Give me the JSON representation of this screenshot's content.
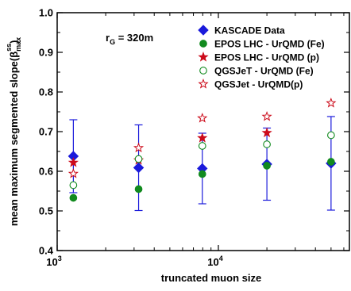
{
  "chart_data": {
    "type": "scatter",
    "title": "",
    "xlabel": "truncated muon size",
    "ylabel": "mean maximum segmented slope(β",
    "ylabel_sub": "max",
    "ylabel_sup": "ss",
    "ylabel_close": ")",
    "xscale": "log",
    "xlim": [
      1000,
      65000
    ],
    "ylim": [
      0.4,
      1.0
    ],
    "x_ticks": [
      {
        "value": 1000,
        "base": "10",
        "exp": "3"
      },
      {
        "value": 10000,
        "base": "10",
        "exp": "4"
      }
    ],
    "y_ticks": [
      {
        "value": 0.4,
        "label": "0.4"
      },
      {
        "value": 0.5,
        "label": "0.5"
      },
      {
        "value": 0.6,
        "label": "0.6"
      },
      {
        "value": 0.7,
        "label": "0.7"
      },
      {
        "value": 0.8,
        "label": "0.8"
      },
      {
        "value": 0.9,
        "label": "0.9"
      },
      {
        "value": 1.0,
        "label": "1.0"
      }
    ],
    "annotation": {
      "main": "r",
      "sub": "G",
      "rest": " = 320m"
    },
    "legend_position": "top-right",
    "series": [
      {
        "name": "KASCADE Data",
        "marker": "diamond",
        "color": "#1a1adb",
        "filled": true,
        "points": [
          {
            "x": 1260,
            "y": 0.638,
            "err": 0.092
          },
          {
            "x": 3200,
            "y": 0.609,
            "err": 0.108
          },
          {
            "x": 7950,
            "y": 0.607,
            "err": 0.089
          },
          {
            "x": 20000,
            "y": 0.618,
            "err": 0.091
          },
          {
            "x": 50000,
            "y": 0.62,
            "err": 0.118
          }
        ]
      },
      {
        "name": "EPOS LHC - UrQMD (Fe)",
        "marker": "circle",
        "color": "#118a1e",
        "filled": true,
        "points": [
          {
            "x": 1260,
            "y": 0.533
          },
          {
            "x": 3200,
            "y": 0.555
          },
          {
            "x": 7950,
            "y": 0.593
          },
          {
            "x": 20000,
            "y": 0.614
          },
          {
            "x": 50000,
            "y": 0.624
          }
        ]
      },
      {
        "name": "EPOS LHC - UrQMD (p)",
        "marker": "star",
        "color": "#cc0b1a",
        "filled": true,
        "points": [
          {
            "x": 1260,
            "y": 0.622
          },
          {
            "x": 3200,
            "y": 0.628
          },
          {
            "x": 7950,
            "y": 0.684
          },
          {
            "x": 20000,
            "y": 0.697
          }
        ]
      },
      {
        "name": "QGSJeT - UrQMD (Fe)",
        "marker": "circle",
        "color": "#118a1e",
        "filled": false,
        "points": [
          {
            "x": 1260,
            "y": 0.565
          },
          {
            "x": 3200,
            "y": 0.631
          },
          {
            "x": 7950,
            "y": 0.664
          },
          {
            "x": 20000,
            "y": 0.668
          },
          {
            "x": 50000,
            "y": 0.691
          }
        ]
      },
      {
        "name": "QGSJet - UrQMD(p)",
        "marker": "star",
        "color": "#cc0b1a",
        "filled": false,
        "points": [
          {
            "x": 1260,
            "y": 0.594
          },
          {
            "x": 3200,
            "y": 0.659
          },
          {
            "x": 7950,
            "y": 0.734
          },
          {
            "x": 20000,
            "y": 0.738
          },
          {
            "x": 50000,
            "y": 0.772
          }
        ]
      }
    ]
  }
}
